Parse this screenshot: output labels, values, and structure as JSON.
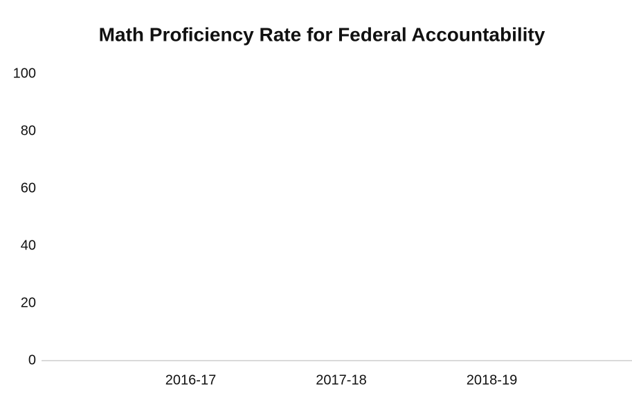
{
  "chart_data": {
    "type": "bar",
    "title": "Math Proficiency Rate for Federal Accountability",
    "categories": [
      "2016-17",
      "2017-18",
      "2018-19"
    ],
    "values": [
      null,
      null,
      null
    ],
    "color": "#4472c4",
    "ylim": [
      0,
      100
    ],
    "yticks": [
      0,
      20,
      40,
      60,
      80,
      100
    ],
    "grid": false
  }
}
